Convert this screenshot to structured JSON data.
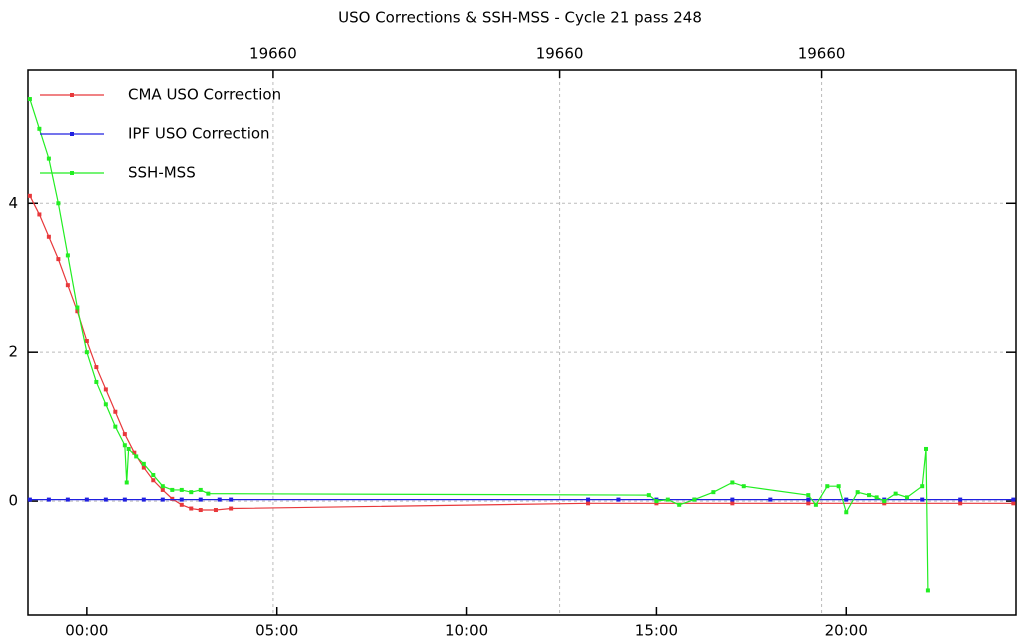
{
  "chart_data": {
    "type": "line",
    "title": "USO Corrections & SSH-MSS - Cycle 21 pass 248",
    "xlim": [
      -1.55,
      24.47
    ],
    "ylim": [
      -1.53,
      5.79
    ],
    "xticks": [
      {
        "value": 0,
        "label": "00:00"
      },
      {
        "value": 5,
        "label": "05:00"
      },
      {
        "value": 10,
        "label": "10:00"
      },
      {
        "value": 15,
        "label": "15:00"
      },
      {
        "value": 20,
        "label": "20:00"
      }
    ],
    "x2ticks": [
      {
        "value": 4.9,
        "label": "19660"
      },
      {
        "value": 12.45,
        "label": "19660"
      },
      {
        "value": 19.35,
        "label": "19660"
      }
    ],
    "yticks": [
      0,
      2,
      4
    ],
    "grid": true,
    "legend": "upper left",
    "series": [
      {
        "name": "CMA USO Correction",
        "color": "#e8383b",
        "x": [
          -1.5,
          -1.25,
          -1,
          -0.75,
          -0.5,
          -0.25,
          0,
          0.25,
          0.5,
          0.75,
          1,
          1.25,
          1.5,
          1.75,
          2,
          2.25,
          2.5,
          2.75,
          3,
          3.4,
          3.8,
          13.2,
          15,
          17,
          19,
          21,
          23,
          24.4
        ],
        "values": [
          4.1,
          3.85,
          3.55,
          3.25,
          2.9,
          2.55,
          2.15,
          1.8,
          1.5,
          1.2,
          0.9,
          0.65,
          0.45,
          0.28,
          0.15,
          0.03,
          -0.05,
          -0.1,
          -0.12,
          -0.12,
          -0.1,
          -0.03,
          -0.03,
          -0.03,
          -0.03,
          -0.03,
          -0.03,
          -0.03
        ]
      },
      {
        "name": "IPF USO Correction",
        "color": "#2020e0",
        "x": [
          -1.5,
          -1,
          -0.5,
          0,
          0.5,
          1,
          1.5,
          2,
          2.5,
          3,
          3.5,
          3.8,
          13.2,
          14,
          15,
          16,
          17,
          18,
          19,
          20,
          21,
          22,
          23,
          24.4
        ],
        "values": [
          0.02,
          0.02,
          0.02,
          0.02,
          0.02,
          0.02,
          0.02,
          0.02,
          0.02,
          0.02,
          0.02,
          0.02,
          0.02,
          0.02,
          0.02,
          0.02,
          0.02,
          0.02,
          0.02,
          0.02,
          0.02,
          0.02,
          0.02,
          0.02
        ]
      },
      {
        "name": "SSH-MSS",
        "color": "#22ee22",
        "x": [
          -1.5,
          -1.25,
          -1,
          -0.75,
          -0.5,
          -0.25,
          0,
          0.25,
          0.5,
          0.75,
          1,
          1.05,
          1.1,
          1.3,
          1.5,
          1.75,
          2,
          2.25,
          2.5,
          2.75,
          3,
          3.2,
          14.8,
          15,
          15.3,
          15.6,
          16,
          16.5,
          17,
          17.3,
          19,
          19.2,
          19.5,
          19.8,
          20,
          20.3,
          20.6,
          20.8,
          21,
          21.3,
          21.6,
          22,
          22.1,
          22.15
        ],
        "values": [
          5.4,
          5.0,
          4.6,
          4.0,
          3.3,
          2.6,
          2.0,
          1.6,
          1.3,
          1.0,
          0.75,
          0.25,
          0.7,
          0.6,
          0.5,
          0.35,
          0.2,
          0.15,
          0.15,
          0.12,
          0.15,
          0.1,
          0.08,
          0.0,
          0.02,
          -0.05,
          0.02,
          0.12,
          0.25,
          0.2,
          0.08,
          -0.05,
          0.2,
          0.2,
          -0.15,
          0.12,
          0.08,
          0.05,
          0.0,
          0.1,
          0.05,
          0.2,
          0.7,
          -1.2
        ]
      }
    ]
  }
}
